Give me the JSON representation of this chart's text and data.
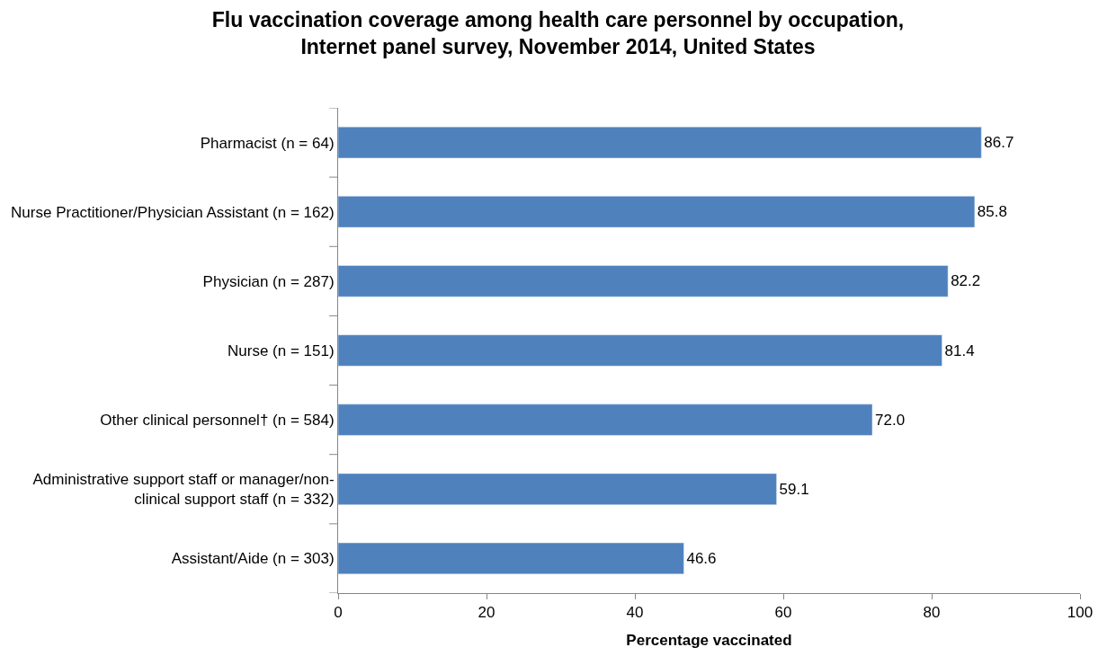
{
  "chart_data": {
    "type": "bar",
    "orientation": "horizontal",
    "title": "Flu vaccination coverage among health care personnel by occupation,\nInternet panel survey, November 2014, United States",
    "xlabel": "Percentage vaccinated",
    "categories": [
      "Pharmacist (n = 64)",
      "Nurse Practitioner/Physician Assistant (n = 162)",
      "Physician (n = 287)",
      "Nurse (n = 151)",
      "Other clinical personnel† (n = 584)",
      "Administrative support staff or manager/non-\nclinical support staff (n = 332)",
      "Assistant/Aide (n = 303)"
    ],
    "values": [
      86.7,
      85.8,
      82.2,
      81.4,
      72.0,
      59.1,
      46.6
    ],
    "value_labels": [
      "86.7",
      "85.8",
      "82.2",
      "81.4",
      "72.0",
      "59.1",
      "46.6"
    ],
    "color": "#4f81bd",
    "xlim": [
      0,
      100
    ],
    "xticks": [
      0,
      20,
      40,
      60,
      80,
      100
    ],
    "legend": false
  }
}
